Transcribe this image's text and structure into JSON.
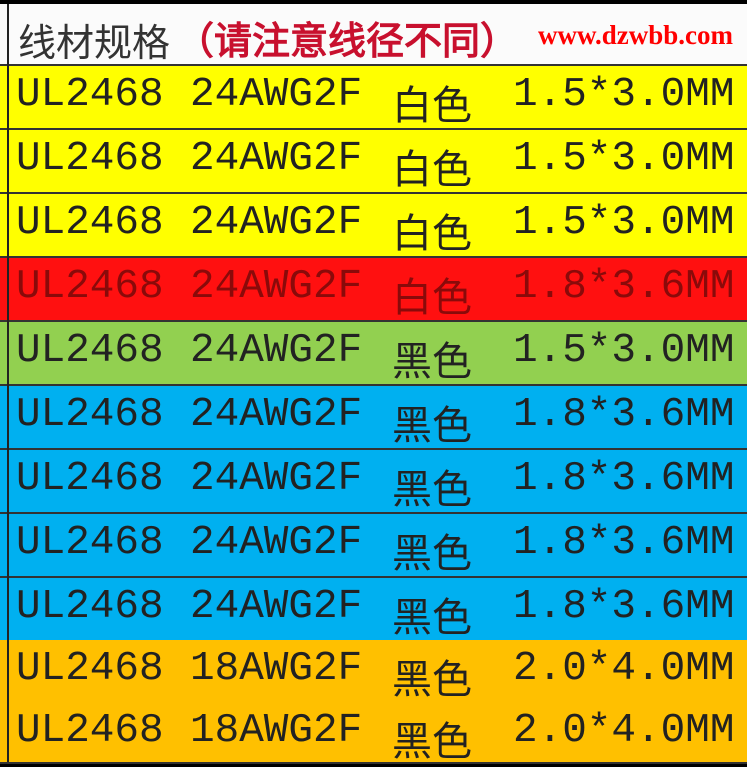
{
  "header": {
    "title": "线材规格",
    "note": "（请注意线径不同）"
  },
  "colors": {
    "yellow": "#ffff00",
    "red": "#ff1010",
    "green": "#92d050",
    "blue": "#00b0f0",
    "orange": "#ffc000"
  },
  "rows": [
    {
      "model": "UL2468",
      "gauge": "24AWG2F",
      "color": "白色",
      "size": "1.5*3.0MM",
      "bg": "yellow"
    },
    {
      "model": "UL2468",
      "gauge": "24AWG2F",
      "color": "白色",
      "size": "1.5*3.0MM",
      "bg": "yellow"
    },
    {
      "model": "UL2468",
      "gauge": "24AWG2F",
      "color": "白色",
      "size": "1.5*3.0MM",
      "bg": "yellow"
    },
    {
      "model": "UL2468",
      "gauge": "24AWG2F",
      "color": "白色",
      "size": "1.8*3.6MM",
      "bg": "red"
    },
    {
      "model": "UL2468",
      "gauge": "24AWG2F",
      "color": "黑色",
      "size": "1.5*3.0MM",
      "bg": "green"
    },
    {
      "model": "UL2468",
      "gauge": "24AWG2F",
      "color": "黑色",
      "size": "1.8*3.6MM",
      "bg": "blue"
    },
    {
      "model": "UL2468",
      "gauge": "24AWG2F",
      "color": "黑色",
      "size": "1.8*3.6MM",
      "bg": "blue"
    },
    {
      "model": "UL2468",
      "gauge": "24AWG2F",
      "color": "黑色",
      "size": "1.8*3.6MM",
      "bg": "blue"
    },
    {
      "model": "UL2468",
      "gauge": "24AWG2F",
      "color": "黑色",
      "size": "1.8*3.6MM",
      "bg": "blue"
    },
    {
      "model": "UL2468",
      "gauge": "18AWG2F",
      "color": "黑色",
      "size": "2.0*4.0MM",
      "bg": "orange"
    },
    {
      "model": "UL2468",
      "gauge": "18AWG2F",
      "color": "黑色",
      "size": "2.0*4.0MM",
      "bg": "orange"
    }
  ],
  "watermark": "www.dzwbb.com"
}
